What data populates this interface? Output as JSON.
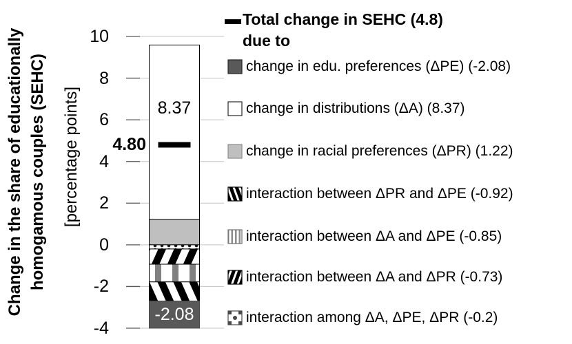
{
  "chart_data": {
    "type": "bar",
    "y_axis": {
      "title_line1": "Change in the share of educationally",
      "title_line2": "homogamous couples (SEHC)",
      "units": "[percentage points]",
      "ticks": [
        10,
        8,
        6,
        4,
        2,
        0,
        -2,
        -4
      ],
      "range": [
        -4,
        10
      ],
      "grid": true
    },
    "total": {
      "value": 4.8,
      "bar_label": "4.80",
      "legend_label": "Total change in SEHC (4.8)",
      "legend_sublabel": "due to"
    },
    "segments": [
      {
        "name": "change in distributions (ΔA)",
        "value": 8.37,
        "from": 1.22,
        "to": 9.59,
        "fill": "white",
        "bar_label": "8.37",
        "bar_label_color": "#000000"
      },
      {
        "name": "change in racial preferences (ΔPR)",
        "value": 1.22,
        "from": 0,
        "to": 1.22,
        "fill": "lightgray"
      },
      {
        "name": "interaction among ΔA, ΔPE, ΔPR",
        "value": -0.2,
        "from": -0.2,
        "to": 0,
        "fill": "dots"
      },
      {
        "name": "interaction between ΔA and ΔPR",
        "value": -0.73,
        "from": -0.93,
        "to": -0.2,
        "fill": "diag-forward"
      },
      {
        "name": "interaction between ΔA and ΔPE",
        "value": -0.85,
        "from": -1.78,
        "to": -0.93,
        "fill": "vstripes"
      },
      {
        "name": "interaction between ΔPR and ΔPE",
        "value": -0.92,
        "from": -2.7,
        "to": -1.78,
        "fill": "diag-back"
      },
      {
        "name": "change in edu. preferences (ΔPE)",
        "value": -2.08,
        "from": -4.78,
        "to": -2.7,
        "fill": "darkgray",
        "bar_label": "-2.08",
        "bar_label_color": "#FFFFFF"
      }
    ],
    "legend": [
      {
        "swatch": "darkgray",
        "label": "change in edu. preferences (ΔPE) (-2.08)"
      },
      {
        "swatch": "white",
        "label": "change in distributions (ΔA) (8.37)"
      },
      {
        "swatch": "lightgray",
        "label": "change in racial preferences (ΔPR) (1.22)"
      },
      {
        "swatch": "diag-back",
        "label": "interaction between ΔPR and ΔPE (-0.92)"
      },
      {
        "swatch": "vstripes",
        "label": "interaction between ΔA and ΔPE (-0.85)"
      },
      {
        "swatch": "diag-forward",
        "label": "interaction between ΔA and ΔPR (-0.73)"
      },
      {
        "swatch": "dots",
        "label": "interaction among ΔA, ΔPE, ΔPR (-0.2)"
      }
    ],
    "colors": {
      "dark_gray": "#595959",
      "light_gray": "#BFBFBF",
      "stripe_gray": "#808080",
      "gridline": "#C3C3C3",
      "tick": "#595959",
      "black": "#000000",
      "white": "#FFFFFF"
    }
  }
}
